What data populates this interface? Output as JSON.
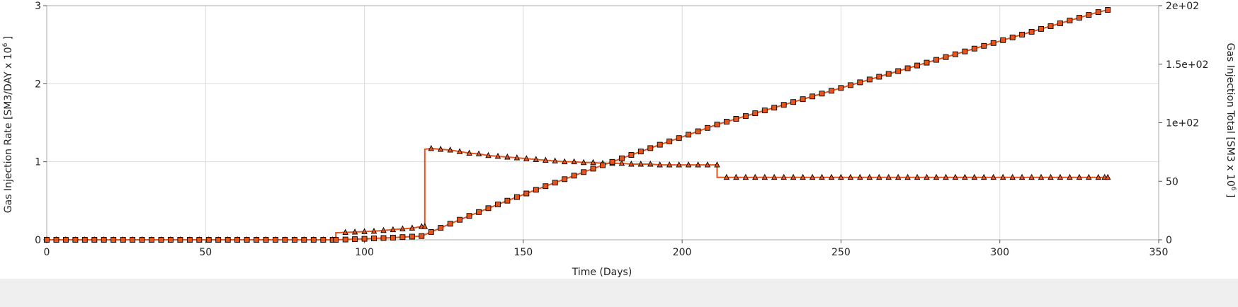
{
  "chart_data": {
    "type": "line",
    "xlabel": "Time (Days)",
    "xlim": [
      0,
      350
    ],
    "x_ticks": [
      "0",
      "50",
      "100",
      "150",
      "200",
      "250",
      "300",
      "350"
    ],
    "y_left": {
      "label_main": "Gas Injection Rate [SM3/DAY x 10",
      "label_sup": "6",
      "label_end": " ]",
      "lim": [
        0,
        3
      ],
      "ticks": [
        "0",
        "1",
        "2",
        "3"
      ]
    },
    "y_right": {
      "label_main": "Gas Injection Total [SM3 x 10",
      "label_sup": "6",
      "label_end": " ]",
      "lim": [
        0,
        200
      ],
      "ticks": [
        "0",
        "50",
        "1e+02",
        "1.5e+02",
        "2e+02"
      ]
    },
    "grid": true,
    "line_color": "#e8551a",
    "marker_fill": "#e8551a",
    "marker_edge": "#000000",
    "series": [
      {
        "axis": "left",
        "marker": "triangle",
        "x": [
          0,
          3,
          6,
          9,
          12,
          15,
          18,
          21,
          24,
          27,
          30,
          33,
          36,
          39,
          42,
          45,
          48,
          51,
          54,
          57,
          60,
          63,
          66,
          69,
          72,
          75,
          78,
          81,
          84,
          87,
          90,
          91,
          91,
          94,
          97,
          100,
          103,
          106,
          109,
          112,
          115,
          118,
          119,
          119,
          121,
          124,
          127,
          130,
          133,
          136,
          139,
          142,
          145,
          148,
          151,
          154,
          157,
          160,
          163,
          166,
          169,
          172,
          175,
          178,
          181,
          184,
          187,
          190,
          193,
          196,
          199,
          202,
          205,
          208,
          211,
          211,
          214,
          217,
          220,
          223,
          226,
          229,
          232,
          235,
          238,
          241,
          244,
          247,
          250,
          253,
          256,
          259,
          262,
          265,
          268,
          271,
          274,
          277,
          280,
          283,
          286,
          289,
          292,
          295,
          298,
          301,
          304,
          307,
          310,
          313,
          316,
          319,
          322,
          325,
          328,
          331,
          333,
          334
        ],
        "y": [
          0,
          0,
          0,
          0,
          0,
          0,
          0,
          0,
          0,
          0,
          0,
          0,
          0,
          0,
          0,
          0,
          0,
          0,
          0,
          0,
          0,
          0,
          0,
          0,
          0,
          0,
          0,
          0,
          0,
          0,
          0,
          0,
          0.09,
          0.095,
          0.1,
          0.105,
          0.11,
          0.12,
          0.13,
          0.14,
          0.15,
          0.17,
          0.17,
          1.16,
          1.17,
          1.16,
          1.15,
          1.13,
          1.11,
          1.1,
          1.08,
          1.07,
          1.06,
          1.05,
          1.04,
          1.03,
          1.02,
          1.01,
          1.0,
          1.0,
          0.99,
          0.99,
          0.98,
          0.98,
          0.98,
          0.97,
          0.97,
          0.97,
          0.96,
          0.96,
          0.96,
          0.96,
          0.96,
          0.96,
          0.96,
          0.8,
          0.8,
          0.8,
          0.8,
          0.8,
          0.8,
          0.8,
          0.8,
          0.8,
          0.8,
          0.8,
          0.8,
          0.8,
          0.8,
          0.8,
          0.8,
          0.8,
          0.8,
          0.8,
          0.8,
          0.8,
          0.8,
          0.8,
          0.8,
          0.8,
          0.8,
          0.8,
          0.8,
          0.8,
          0.8,
          0.8,
          0.8,
          0.8,
          0.8,
          0.8,
          0.8,
          0.8,
          0.8,
          0.8,
          0.8,
          0.8,
          0.8,
          0.8
        ]
      },
      {
        "axis": "right",
        "marker": "square",
        "x": [
          0,
          3,
          6,
          9,
          12,
          15,
          18,
          21,
          24,
          27,
          30,
          33,
          36,
          39,
          42,
          45,
          48,
          51,
          54,
          57,
          60,
          63,
          66,
          69,
          72,
          75,
          78,
          81,
          84,
          87,
          90,
          91,
          94,
          97,
          100,
          103,
          106,
          109,
          112,
          115,
          118,
          121,
          124,
          127,
          130,
          133,
          136,
          139,
          142,
          145,
          148,
          151,
          154,
          157,
          160,
          163,
          166,
          169,
          172,
          175,
          178,
          181,
          184,
          187,
          190,
          193,
          196,
          199,
          202,
          205,
          208,
          211,
          214,
          217,
          220,
          223,
          226,
          229,
          232,
          235,
          238,
          241,
          244,
          247,
          250,
          253,
          256,
          259,
          262,
          265,
          268,
          271,
          274,
          277,
          280,
          283,
          286,
          289,
          292,
          295,
          298,
          301,
          304,
          307,
          310,
          313,
          316,
          319,
          322,
          325,
          328,
          331,
          334
        ],
        "y": [
          0,
          0,
          0,
          0,
          0,
          0,
          0,
          0,
          0,
          0,
          0,
          0,
          0,
          0,
          0,
          0,
          0,
          0,
          0,
          0,
          0,
          0,
          0,
          0,
          0,
          0,
          0,
          0,
          0,
          0,
          0,
          0,
          0.27,
          0.56,
          0.87,
          1.2,
          1.53,
          1.9,
          2.3,
          2.7,
          3.2,
          6.7,
          10.2,
          13.7,
          17.1,
          20.4,
          23.7,
          27.0,
          30.2,
          33.4,
          36.5,
          39.6,
          42.7,
          45.8,
          48.8,
          51.8,
          54.8,
          57.8,
          60.8,
          63.7,
          66.6,
          69.6,
          72.5,
          75.4,
          78.3,
          81.2,
          84.1,
          86.9,
          89.8,
          92.7,
          95.6,
          98.5,
          100.9,
          103.3,
          105.7,
          108.1,
          110.5,
          112.9,
          115.3,
          117.7,
          120.1,
          122.5,
          124.9,
          127.3,
          129.7,
          132.1,
          134.5,
          136.9,
          139.3,
          141.7,
          144.1,
          146.5,
          148.9,
          151.3,
          153.7,
          156.1,
          158.5,
          160.9,
          163.3,
          165.7,
          168.1,
          170.5,
          172.9,
          175.3,
          177.7,
          180.1,
          182.5,
          184.9,
          187.3,
          189.7,
          192.1,
          194.5,
          196.4
        ]
      }
    ]
  }
}
